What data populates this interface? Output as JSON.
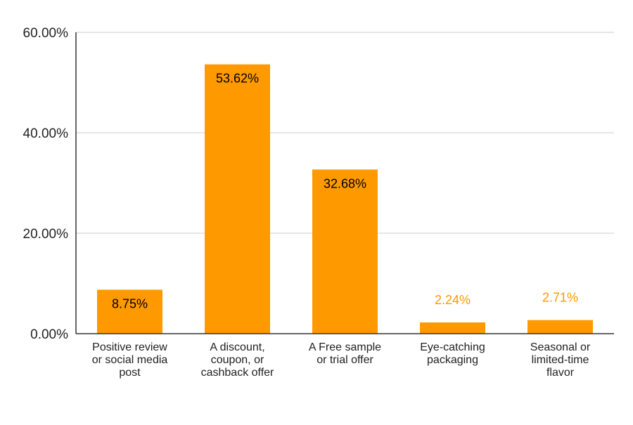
{
  "chart_data": {
    "type": "bar",
    "categories": [
      "Positive review or social media post",
      "A discount, coupon, or cashback offer",
      "A Free sample or trial offer",
      "Eye-catching packaging",
      "Seasonal or limited-time flavor"
    ],
    "category_lines": [
      [
        "Positive review",
        "or social media",
        "post"
      ],
      [
        "A discount,",
        "coupon, or",
        "cashback offer"
      ],
      [
        "A Free sample",
        "or trial offer"
      ],
      [
        "Eye-catching",
        "packaging"
      ],
      [
        "Seasonal or",
        "limited-time",
        "flavor"
      ]
    ],
    "values": [
      8.75,
      53.62,
      32.68,
      2.24,
      2.71
    ],
    "data_labels": [
      "8.75%",
      "53.62%",
      "32.68%",
      "2.24%",
      "2.71%"
    ],
    "ylim": [
      0,
      60
    ],
    "yticks": [
      0,
      20,
      40,
      60
    ],
    "ytick_labels": [
      "0.00%",
      "20.00%",
      "40.00%",
      "60.00%"
    ],
    "grid": true,
    "legend": "none",
    "title": "",
    "xlabel": "",
    "ylabel": "",
    "bar_color": "#FF9900",
    "label_inside_color": "#000000",
    "label_outside_color": "#FF9900",
    "grid_color": "#CCCCCC",
    "axis_color": "#333333"
  }
}
